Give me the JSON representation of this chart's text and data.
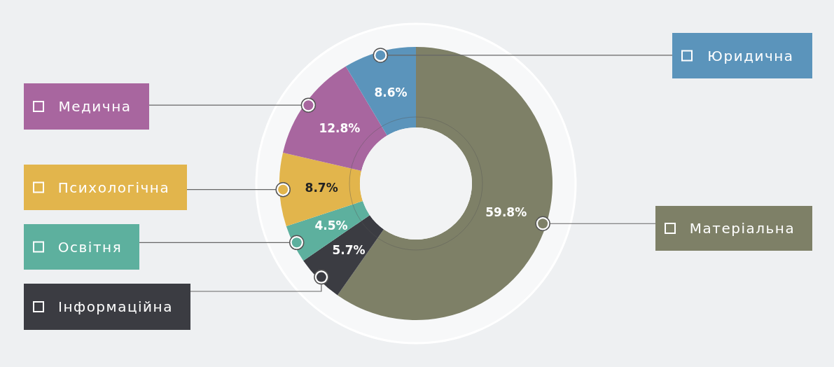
{
  "chart_data": {
    "type": "donut",
    "categories": [
      "Матеріальна",
      "Інформаційна",
      "Освітня",
      "Психологічна",
      "Медична",
      "Юридична"
    ],
    "values": [
      59.8,
      5.7,
      4.5,
      8.7,
      12.8,
      8.6
    ],
    "colors": [
      "#7e8067",
      "#3b3c42",
      "#5db09e",
      "#e2b54c",
      "#a8669f",
      "#5b94bb"
    ],
    "data_labels": true,
    "legend": "left",
    "value_labels": [
      "59.8%",
      "5.7%",
      "4.5%",
      "8.7%",
      "12.8%",
      "8.6%"
    ]
  }
}
